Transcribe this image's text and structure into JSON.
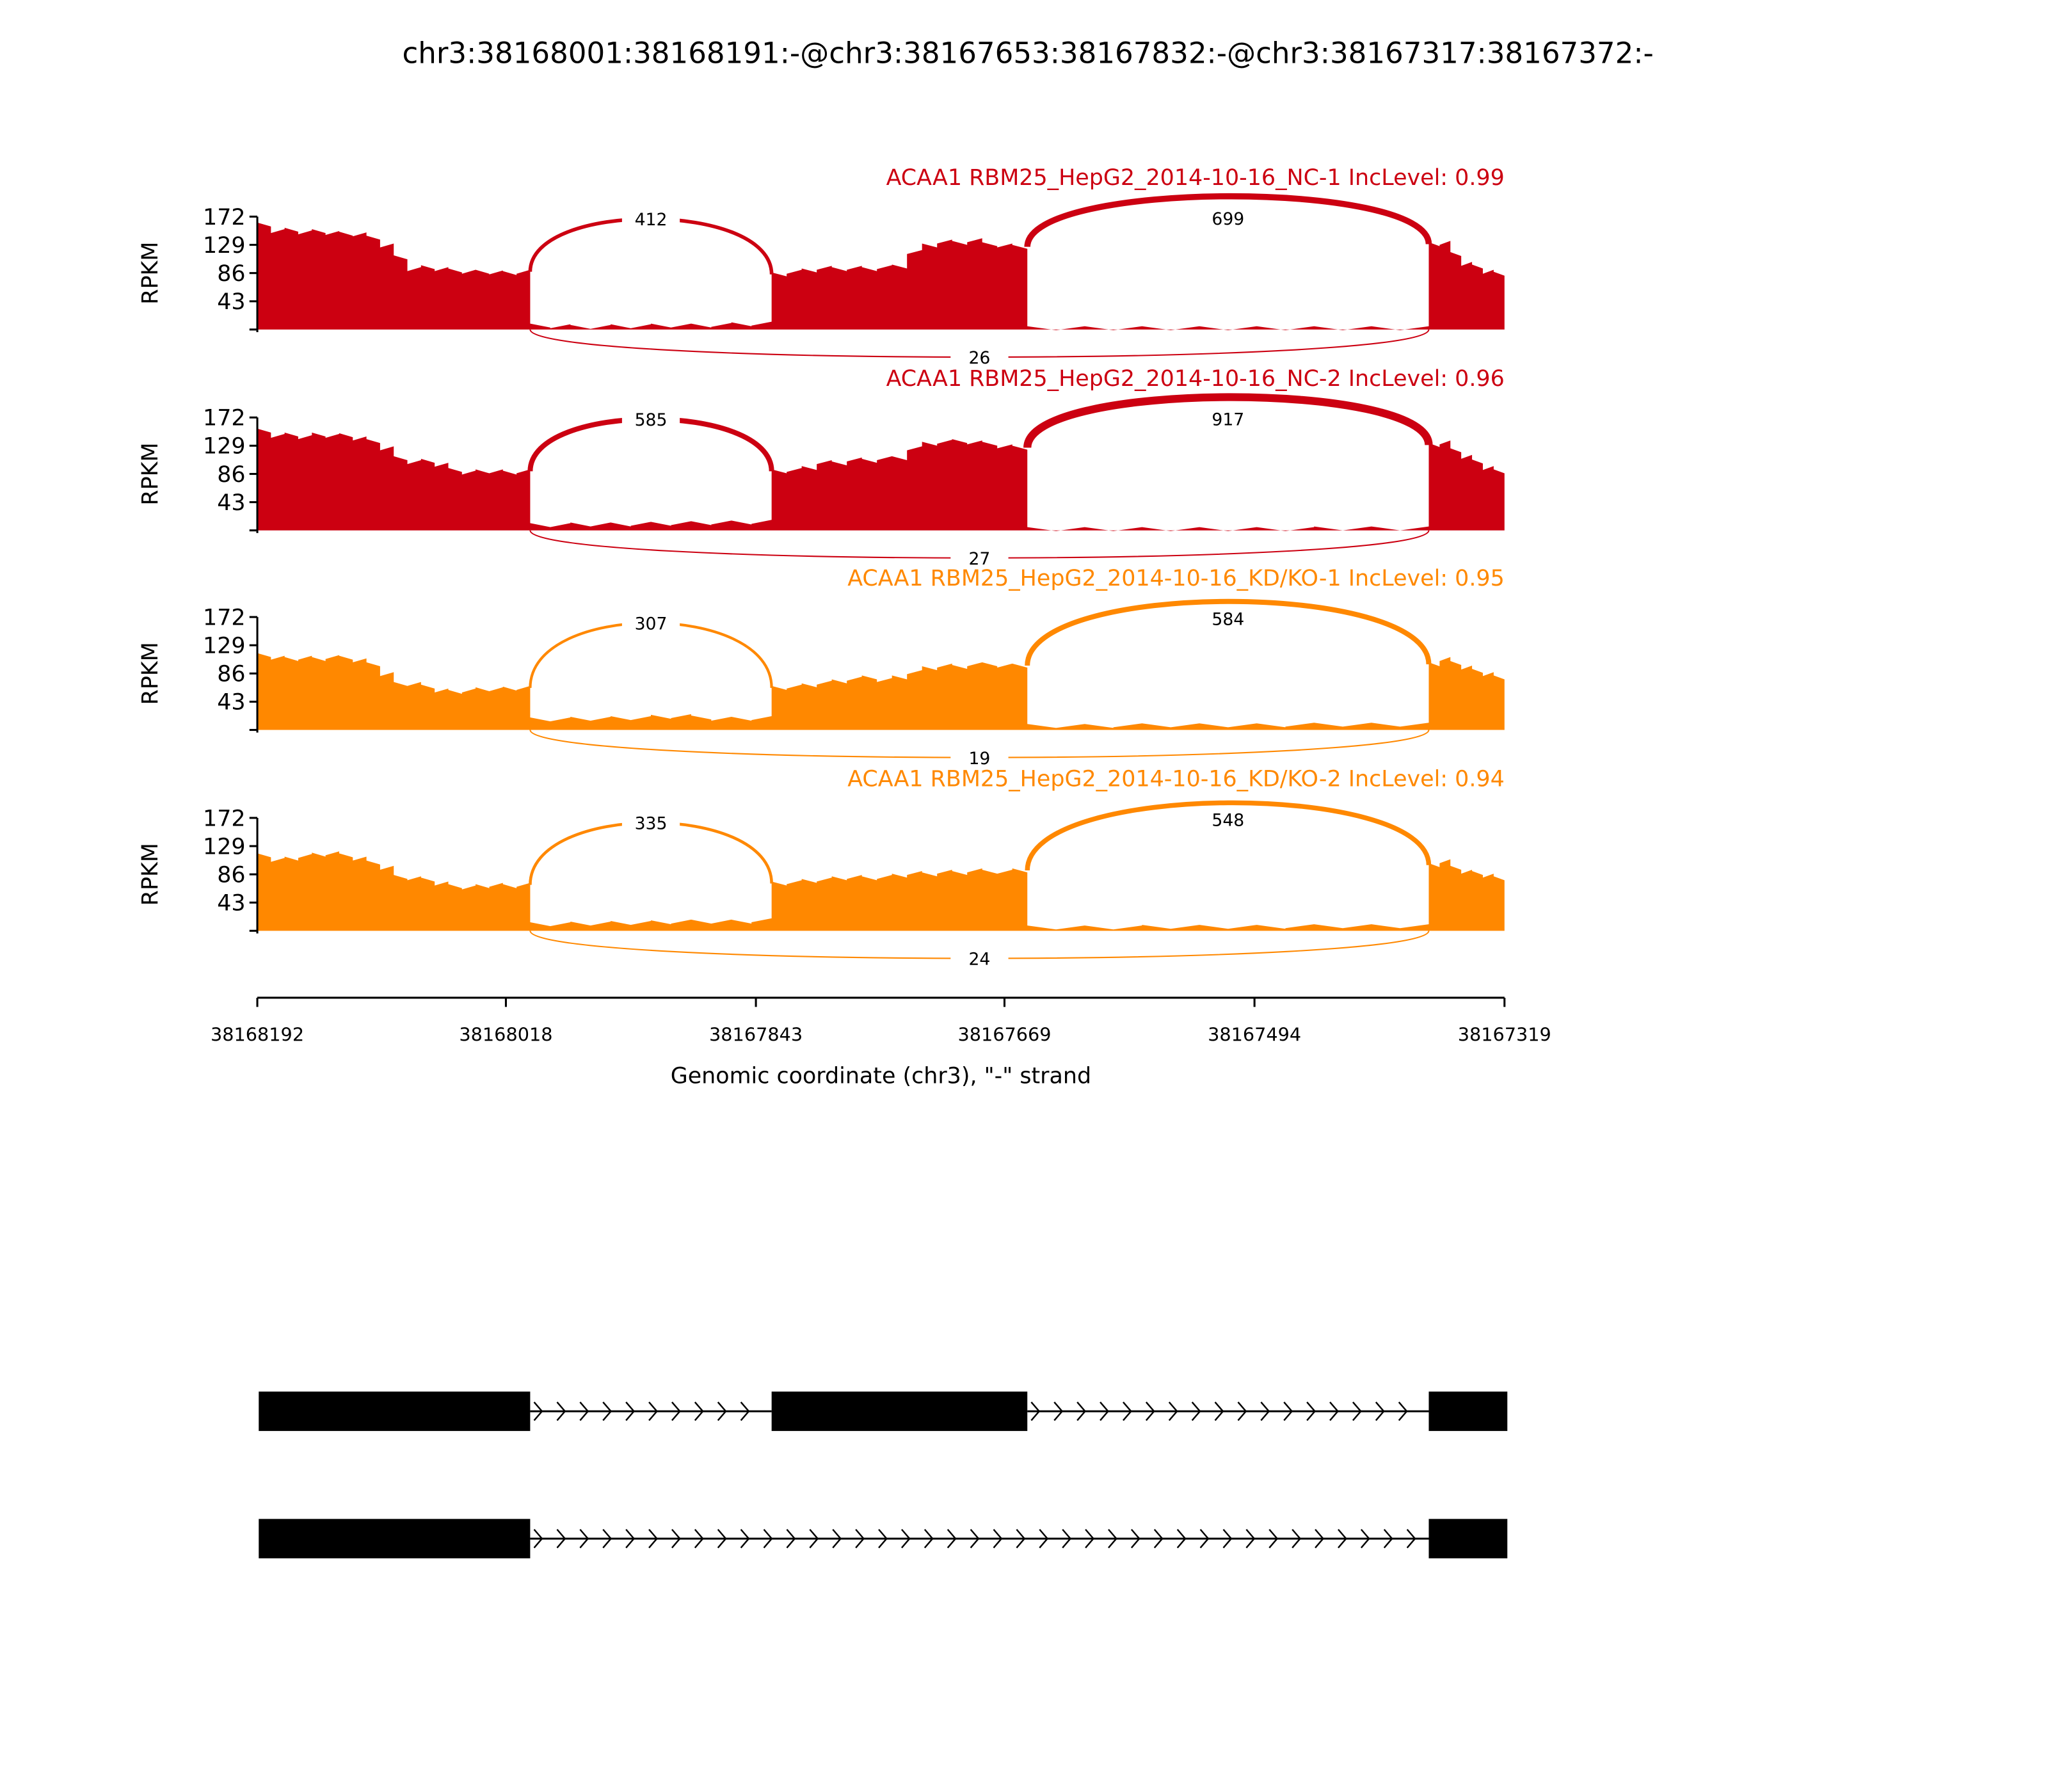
{
  "chart_data": {
    "type": "area",
    "title": "chr3:38168001:38168191:-@chr3:38167653:38167832:-@chr3:38167317:38167372:-",
    "xlabel": "Genomic coordinate (chr3), \"-\" strand",
    "ylabel": "RPKM",
    "xlim": [
      38168192,
      38167319
    ],
    "ylim": [
      0,
      172
    ],
    "yticks": [
      "172",
      "129",
      "86",
      "43"
    ],
    "xticks": [
      "38168192",
      "38168018",
      "38167843",
      "38167669",
      "38167494",
      "38167319"
    ],
    "xtick_values": [
      38168192,
      38168018,
      38167843,
      38167669,
      38167494,
      38167319
    ],
    "exons": [
      [
        38168191,
        38168001
      ],
      [
        38167832,
        38167653
      ],
      [
        38167372,
        38167317
      ]
    ],
    "samples": [
      {
        "title": "ACAA1 RBM25_HepG2_2014-10-16_NC-1 IncLevel: 0.99",
        "color": "#cc0011",
        "coverage": {
          "exon1": [
            160,
            150,
            152,
            148,
            150,
            147,
            146,
            145,
            140,
            128,
            110,
            92,
            95,
            92,
            90,
            88,
            88,
            87,
            86,
            88
          ],
          "intron1": [
            6,
            5,
            4,
            4,
            5,
            5,
            6,
            6,
            6,
            7,
            8,
            9
          ],
          "exon2": [
            84,
            88,
            90,
            94,
            92,
            94,
            92,
            95,
            96,
            118,
            128,
            134,
            132,
            136,
            130,
            128,
            126
          ],
          "intron2": [
            2,
            2,
            2,
            2,
            2,
            2,
            2,
            2,
            2,
            2,
            2,
            2,
            2,
            2
          ],
          "exon3": [
            130,
            132,
            115,
            100,
            96,
            88,
            85
          ]
        },
        "junctions": {
          "inc1": "412",
          "inc2": "699",
          "skip": "26"
        }
      },
      {
        "title": "ACAA1 RBM25_HepG2_2014-10-16_NC-2 IncLevel: 0.96",
        "color": "#cc0011",
        "coverage": {
          "exon1": [
            152,
            144,
            146,
            142,
            146,
            144,
            145,
            140,
            136,
            125,
            110,
            104,
            106,
            100,
            92,
            88,
            90,
            90,
            88,
            90
          ],
          "intron1": [
            8,
            8,
            9,
            9,
            9,
            10,
            10,
            11,
            11,
            12,
            12,
            13
          ],
          "exon2": [
            90,
            92,
            95,
            104,
            102,
            108,
            106,
            110,
            110,
            125,
            132,
            135,
            136,
            134,
            132,
            128,
            126
          ],
          "intron2": [
            2,
            2,
            2,
            2,
            2,
            2,
            2,
            2,
            2,
            2,
            3,
            3,
            3,
            3
          ],
          "exon3": [
            130,
            134,
            122,
            112,
            105,
            95,
            90
          ]
        },
        "junctions": {
          "inc1": "585",
          "inc2": "917",
          "skip": "27"
        }
      },
      {
        "title": "ACAA1 RBM25_HepG2_2014-10-16_KD/KO-1 IncLevel: 0.95",
        "color": "#ff8800",
        "coverage": {
          "exon1": [
            114,
            110,
            108,
            110,
            108,
            111,
            110,
            106,
            100,
            85,
            70,
            70,
            66,
            60,
            58,
            60,
            62,
            62,
            63,
            64
          ],
          "intron1": [
            16,
            16,
            17,
            17,
            18,
            18,
            20,
            21,
            19,
            17,
            17,
            18
          ],
          "exon2": [
            64,
            66,
            68,
            72,
            74,
            78,
            80,
            76,
            80,
            88,
            94,
            98,
            96,
            100,
            100,
            98,
            98
          ],
          "intron2": [
            6,
            6,
            6,
            7,
            7,
            7,
            7,
            7,
            7,
            8,
            8,
            8,
            8,
            8
          ],
          "exon3": [
            100,
            108,
            102,
            95,
            90,
            85,
            80
          ]
        },
        "junctions": {
          "inc1": "307",
          "inc2": "584",
          "skip": "19"
        }
      },
      {
        "title": "ACAA1 RBM25_HepG2_2014-10-16_KD/KO-2 IncLevel: 0.94",
        "color": "#ff8800",
        "coverage": {
          "exon1": [
            115,
            108,
            110,
            114,
            116,
            118,
            115,
            110,
            104,
            96,
            82,
            80,
            78,
            72,
            68,
            66,
            68,
            70,
            68,
            70
          ],
          "intron1": [
            10,
            10,
            11,
            11,
            12,
            12,
            13,
            14,
            14,
            14,
            14,
            16
          ],
          "exon2": [
            72,
            74,
            76,
            78,
            80,
            82,
            80,
            82,
            84,
            88,
            86,
            90,
            88,
            92,
            90,
            90,
            92
          ],
          "intron2": [
            5,
            5,
            5,
            5,
            6,
            6,
            6,
            6,
            6,
            7,
            7,
            7,
            7,
            7
          ],
          "exon3": [
            100,
            106,
            96,
            90,
            88,
            84,
            80
          ]
        },
        "junctions": {
          "inc1": "335",
          "inc2": "548",
          "skip": "24"
        }
      }
    ],
    "isoforms": [
      {
        "exons": [
          [
            38168191,
            38168001
          ],
          [
            38167832,
            38167653
          ],
          [
            38167372,
            38167317
          ]
        ]
      },
      {
        "exons": [
          [
            38168191,
            38168001
          ],
          [
            38167372,
            38167317
          ]
        ]
      }
    ]
  }
}
